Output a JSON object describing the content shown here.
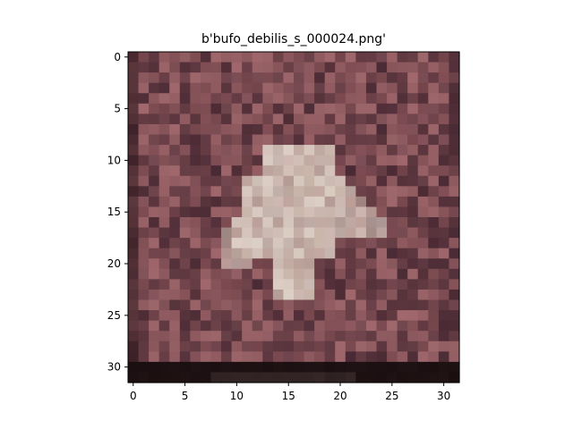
{
  "chart_data": {
    "type": "heatmap",
    "title": "b'bufo_debilis_s_000024.png'",
    "xlabel": "",
    "ylabel": "",
    "xlim": [
      -0.5,
      31.5
    ],
    "ylim": [
      31.5,
      -0.5
    ],
    "x_ticks": [
      0,
      5,
      10,
      15,
      20,
      25,
      30
    ],
    "y_ticks": [
      0,
      5,
      10,
      15,
      20,
      25,
      30
    ],
    "grid": false,
    "image_shape": [
      32,
      32
    ],
    "image_description_colors": {
      "background_base": "#7a4a50",
      "background_dark": "#4a2a34",
      "background_light": "#a0686c",
      "toad_body": "#cbb8ad",
      "toad_highlight": "#ddd0c6",
      "bottom_band": "#1a0e10"
    }
  }
}
